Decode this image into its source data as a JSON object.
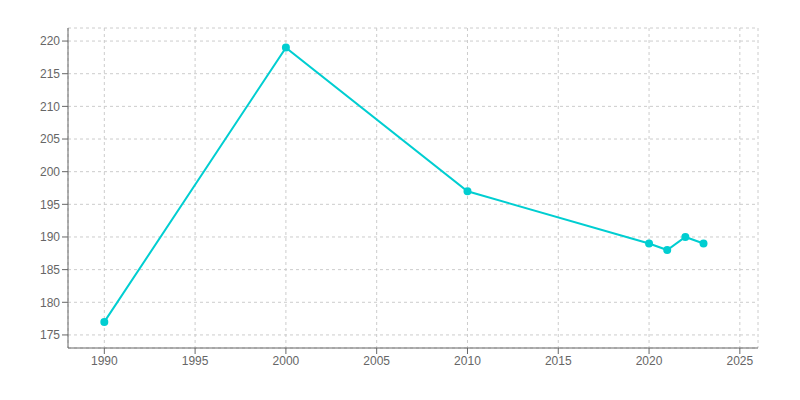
{
  "chart_data": {
    "type": "line",
    "x": [
      1990,
      2000,
      2010,
      2020,
      2021,
      2022,
      2023
    ],
    "values": [
      177,
      219,
      197,
      189,
      188,
      190,
      189
    ],
    "color": "#00CED1",
    "marker": "circle",
    "xlim": [
      1988,
      2026
    ],
    "ylim": [
      173,
      222
    ],
    "xticks": [
      1990,
      1995,
      2000,
      2005,
      2010,
      2015,
      2020,
      2025
    ],
    "yticks": [
      175,
      180,
      185,
      190,
      195,
      200,
      205,
      210,
      215,
      220
    ],
    "grid": true
  }
}
